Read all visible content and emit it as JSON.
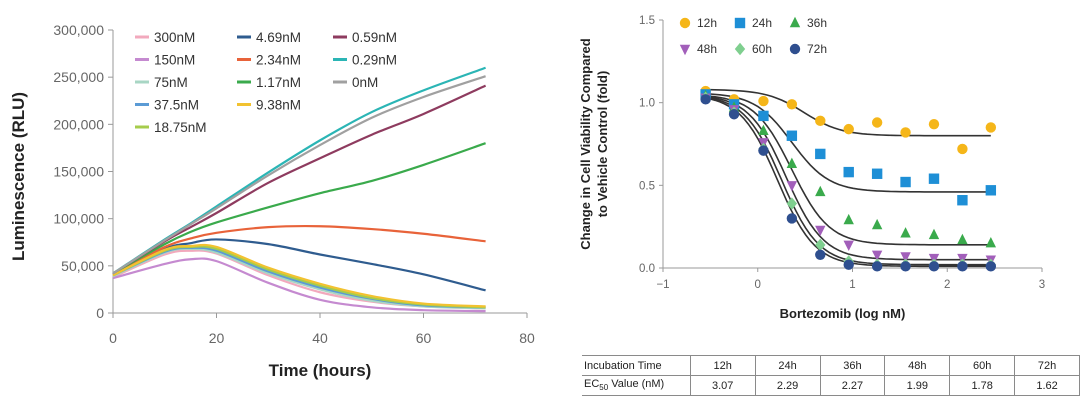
{
  "chart_data": [
    {
      "type": "line",
      "xlabel": "Time (hours)",
      "ylabel": "Luminescence (RLU)",
      "xlim": [
        0,
        80
      ],
      "ylim": [
        0,
        300000
      ],
      "xticks": [
        "0",
        "20",
        "40",
        "60",
        "80"
      ],
      "yticks": [
        "0",
        "50,000",
        "100,000",
        "150,000",
        "200,000",
        "250,000",
        "300,000"
      ],
      "x": [
        0,
        10,
        15,
        20,
        30,
        40,
        50,
        60,
        72
      ],
      "series": [
        {
          "name": "300nM",
          "color": "#f2a9bd",
          "values": [
            38000,
            62000,
            66000,
            63000,
            40000,
            22000,
            12000,
            7000,
            5000
          ]
        },
        {
          "name": "150nM",
          "color": "#c58ad0",
          "values": [
            37000,
            52000,
            57000,
            55000,
            32000,
            14000,
            6000,
            3000,
            2000
          ]
        },
        {
          "name": "75nM",
          "color": "#a8d6c4",
          "values": [
            39000,
            64000,
            68000,
            64000,
            42000,
            25000,
            13000,
            7000,
            5000
          ]
        },
        {
          "name": "37.5nM",
          "color": "#5b9bd5",
          "values": [
            40000,
            65000,
            69000,
            66000,
            44000,
            27000,
            15000,
            8000,
            6000
          ]
        },
        {
          "name": "18.75nM",
          "color": "#a6cc4c",
          "values": [
            40000,
            66000,
            70000,
            68000,
            46000,
            29000,
            16000,
            9000,
            6000
          ]
        },
        {
          "name": "4.69nM",
          "color": "#2f5c8f",
          "values": [
            41000,
            68000,
            74000,
            78000,
            73000,
            62000,
            52000,
            41000,
            24000
          ]
        },
        {
          "name": "2.34nM",
          "color": "#e8633a",
          "values": [
            41000,
            70000,
            79000,
            85000,
            91000,
            92000,
            89000,
            84000,
            76000
          ]
        },
        {
          "name": "1.17nM",
          "color": "#3aaa4c",
          "values": [
            42000,
            73000,
            86000,
            96000,
            112000,
            127000,
            140000,
            157000,
            180000
          ]
        },
        {
          "name": "9.38nM",
          "color": "#f2c230",
          "values": [
            40000,
            67000,
            71000,
            70000,
            48000,
            31000,
            18000,
            10000,
            7000
          ]
        },
        {
          "name": "0.59nM",
          "color": "#8e3b5f",
          "values": [
            42000,
            76000,
            91000,
            106000,
            138000,
            164000,
            189000,
            211000,
            241000
          ]
        },
        {
          "name": "0.29nM",
          "color": "#2bb5b5",
          "values": [
            42000,
            78000,
            95000,
            113000,
            149000,
            183000,
            213000,
            236000,
            260000
          ]
        },
        {
          "name": "0nM",
          "color": "#a0a0a0",
          "values": [
            42000,
            77000,
            94000,
            111000,
            146000,
            178000,
            207000,
            229000,
            251000
          ]
        }
      ]
    },
    {
      "type": "scatter",
      "xlabel": "Bortezomib (log nM)",
      "ylabel_line1": "Change in Cell Viability Compared",
      "ylabel_line2": "to Vehicle Control (fold)",
      "xlim": [
        -1,
        3
      ],
      "ylim": [
        0,
        1.5
      ],
      "xticks": [
        "−1",
        "0",
        "1",
        "2",
        "3"
      ],
      "yticks": [
        "0.0",
        "0.5",
        "1.0",
        "1.5"
      ],
      "x": [
        -0.55,
        -0.25,
        0.06,
        0.36,
        0.66,
        0.96,
        1.26,
        1.56,
        1.86,
        2.16,
        2.46
      ],
      "series": [
        {
          "name": "12h",
          "marker": "circle",
          "color": "#f5b619",
          "top": 1.08,
          "bottom": 0.8,
          "ec50": 0.49,
          "values": [
            1.07,
            1.02,
            1.01,
            0.99,
            0.89,
            0.84,
            0.88,
            0.82,
            0.87,
            0.72,
            0.85
          ]
        },
        {
          "name": "24h",
          "marker": "square",
          "color": "#1e8fd6",
          "top": 1.06,
          "bottom": 0.46,
          "ec50": 0.36,
          "values": [
            1.05,
            0.99,
            0.92,
            0.8,
            0.69,
            0.58,
            0.57,
            0.52,
            0.54,
            0.41,
            0.47
          ]
        },
        {
          "name": "36h",
          "marker": "triangle",
          "color": "#3aaa4c",
          "top": 1.05,
          "bottom": 0.14,
          "ec50": 0.36,
          "values": [
            1.04,
            0.97,
            0.83,
            0.63,
            0.46,
            0.29,
            0.26,
            0.21,
            0.2,
            0.17,
            0.15
          ]
        },
        {
          "name": "48h",
          "marker": "triangle-down",
          "color": "#a25fba",
          "top": 1.05,
          "bottom": 0.05,
          "ec50": 0.3,
          "values": [
            1.03,
            0.96,
            0.76,
            0.5,
            0.23,
            0.14,
            0.08,
            0.07,
            0.06,
            0.06,
            0.05
          ]
        },
        {
          "name": "60h",
          "marker": "diamond",
          "color": "#7fcf8f",
          "top": 1.05,
          "bottom": 0.02,
          "ec50": 0.25,
          "values": [
            1.03,
            0.94,
            0.72,
            0.39,
            0.14,
            0.04,
            0.02,
            0.02,
            0.02,
            0.02,
            0.02
          ]
        },
        {
          "name": "72h",
          "marker": "circle",
          "color": "#2f4f8f",
          "top": 1.05,
          "bottom": 0.01,
          "ec50": 0.21,
          "values": [
            1.02,
            0.93,
            0.71,
            0.3,
            0.08,
            0.02,
            0.01,
            0.01,
            0.01,
            0.01,
            0.01
          ]
        }
      ]
    }
  ],
  "table": {
    "row1_label": "Incubation Time",
    "row2_label_prefix": "EC",
    "row2_label_sub": "50",
    "row2_label_suffix": " Value (nM)",
    "headers": [
      "12h",
      "24h",
      "36h",
      "48h",
      "60h",
      "72h"
    ],
    "values": [
      "3.07",
      "2.29",
      "2.27",
      "1.99",
      "1.78",
      "1.62"
    ]
  }
}
